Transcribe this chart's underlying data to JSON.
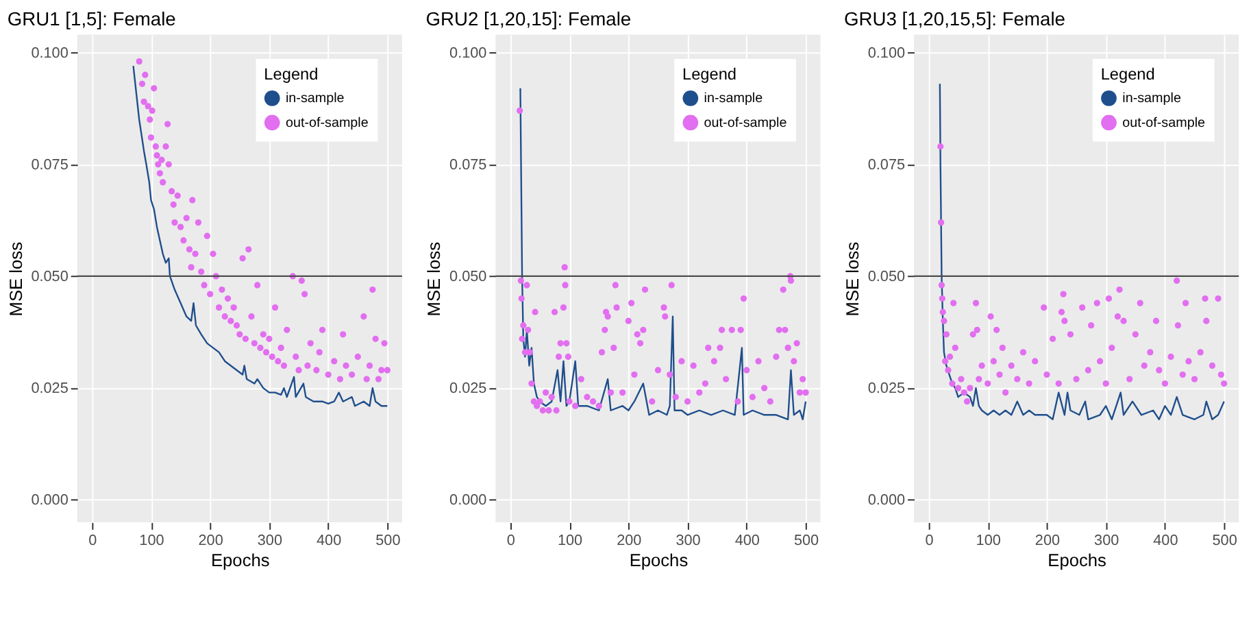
{
  "chart_data": [
    {
      "type": "line",
      "title": "GRU1 [1,5]: Female",
      "xlabel": "Epochs",
      "ylabel": "MSE loss",
      "legend_title": "Legend",
      "legend": "top right",
      "grid": true,
      "xlim": [
        -25,
        525
      ],
      "xticks": [
        0,
        100,
        200,
        300,
        400,
        500
      ],
      "ylim": [
        -0.005,
        0.104
      ],
      "yticks": [
        {
          "value": 0,
          "label": "0.000"
        },
        {
          "value": 0.025,
          "label": "0.025"
        },
        {
          "value": 0.05,
          "label": "0.050"
        },
        {
          "value": 0.075,
          "label": "0.075"
        },
        {
          "value": 0.1,
          "label": "0.100"
        }
      ],
      "ref_lines": [
        {
          "axis": "y",
          "value": 0.05,
          "label": null,
          "color": "#4d4d4d"
        }
      ],
      "series": [
        {
          "name": "in-sample",
          "color": "#1f4e8c",
          "x": [
            70,
            80,
            88,
            92,
            97,
            100,
            105,
            110,
            115,
            120,
            125,
            130,
            132,
            140,
            150,
            160,
            168,
            172,
            176,
            185,
            195,
            205,
            215,
            225,
            235,
            245,
            255,
            258,
            262,
            275,
            280,
            290,
            300,
            310,
            320,
            325,
            330,
            342,
            345,
            358,
            362,
            375,
            390,
            400,
            410,
            418,
            425,
            440,
            445,
            460,
            470,
            475,
            480,
            490,
            500
          ],
          "values": [
            0.097,
            0.085,
            0.078,
            0.075,
            0.071,
            0.067,
            0.065,
            0.061,
            0.058,
            0.055,
            0.053,
            0.054,
            0.05,
            0.047,
            0.044,
            0.041,
            0.04,
            0.044,
            0.039,
            0.037,
            0.035,
            0.034,
            0.033,
            0.031,
            0.03,
            0.029,
            0.028,
            0.03,
            0.027,
            0.026,
            0.027,
            0.025,
            0.024,
            0.024,
            0.0235,
            0.025,
            0.023,
            0.0275,
            0.023,
            0.026,
            0.023,
            0.022,
            0.022,
            0.0215,
            0.022,
            0.024,
            0.022,
            0.023,
            0.021,
            0.022,
            0.021,
            0.025,
            0.022,
            0.021,
            0.021
          ]
        },
        {
          "name": "out-of-sample",
          "type": "scatter",
          "marker": "circle",
          "color": "#e26ef0",
          "x": [
            80,
            85,
            88,
            90,
            95,
            98,
            100,
            102,
            105,
            108,
            110,
            112,
            115,
            118,
            120,
            125,
            128,
            130,
            135,
            138,
            140,
            145,
            150,
            155,
            160,
            165,
            168,
            170,
            175,
            180,
            185,
            190,
            195,
            200,
            205,
            210,
            215,
            220,
            225,
            230,
            235,
            240,
            245,
            250,
            255,
            260,
            265,
            270,
            275,
            280,
            285,
            290,
            295,
            300,
            305,
            310,
            315,
            320,
            325,
            330,
            340,
            345,
            350,
            355,
            360,
            365,
            370,
            380,
            385,
            390,
            400,
            410,
            420,
            425,
            430,
            440,
            450,
            460,
            465,
            470,
            475,
            480,
            485,
            490,
            495,
            500
          ],
          "values": [
            0.098,
            0.093,
            0.089,
            0.095,
            0.088,
            0.085,
            0.081,
            0.087,
            0.092,
            0.079,
            0.077,
            0.075,
            0.073,
            0.076,
            0.071,
            0.079,
            0.084,
            0.075,
            0.069,
            0.066,
            0.062,
            0.068,
            0.061,
            0.058,
            0.063,
            0.056,
            0.052,
            0.067,
            0.055,
            0.062,
            0.051,
            0.048,
            0.059,
            0.046,
            0.055,
            0.05,
            0.043,
            0.047,
            0.041,
            0.045,
            0.04,
            0.043,
            0.039,
            0.037,
            0.054,
            0.036,
            0.056,
            0.041,
            0.035,
            0.048,
            0.034,
            0.037,
            0.033,
            0.036,
            0.032,
            0.043,
            0.031,
            0.034,
            0.03,
            0.038,
            0.05,
            0.032,
            0.029,
            0.049,
            0.046,
            0.03,
            0.035,
            0.029,
            0.033,
            0.038,
            0.028,
            0.031,
            0.027,
            0.037,
            0.03,
            0.028,
            0.032,
            0.041,
            0.027,
            0.03,
            0.047,
            0.036,
            0.027,
            0.029,
            0.035,
            0.029
          ]
        }
      ]
    },
    {
      "type": "line",
      "title": "GRU2 [1,20,15]: Female",
      "xlabel": "Epochs",
      "ylabel": "MSE loss",
      "legend_title": "Legend",
      "legend": "top right",
      "grid": true,
      "xlim": [
        -25,
        525
      ],
      "xticks": [
        0,
        100,
        200,
        300,
        400,
        500
      ],
      "ylim": [
        -0.005,
        0.104
      ],
      "yticks": [
        {
          "value": 0,
          "label": "0.000"
        },
        {
          "value": 0.025,
          "label": "0.025"
        },
        {
          "value": 0.05,
          "label": "0.050"
        },
        {
          "value": 0.075,
          "label": "0.075"
        },
        {
          "value": 0.1,
          "label": "0.100"
        }
      ],
      "ref_lines": [
        {
          "axis": "y",
          "value": 0.05,
          "label": null,
          "color": "#4d4d4d"
        }
      ],
      "series": [
        {
          "name": "in-sample",
          "color": "#1f4e8c",
          "x": [
            17,
            20,
            22,
            25,
            28,
            32,
            36,
            40,
            45,
            50,
            60,
            70,
            80,
            85,
            90,
            95,
            100,
            110,
            115,
            130,
            150,
            165,
            170,
            190,
            200,
            210,
            225,
            235,
            250,
            265,
            270,
            275,
            278,
            290,
            300,
            320,
            340,
            360,
            380,
            392,
            395,
            410,
            430,
            450,
            470,
            475,
            480,
            490,
            495,
            500
          ],
          "values": [
            0.092,
            0.05,
            0.036,
            0.032,
            0.038,
            0.03,
            0.034,
            0.026,
            0.023,
            0.022,
            0.021,
            0.022,
            0.029,
            0.022,
            0.031,
            0.021,
            0.022,
            0.031,
            0.021,
            0.021,
            0.02,
            0.027,
            0.02,
            0.021,
            0.02,
            0.022,
            0.026,
            0.019,
            0.02,
            0.019,
            0.021,
            0.041,
            0.02,
            0.02,
            0.019,
            0.02,
            0.019,
            0.02,
            0.019,
            0.034,
            0.019,
            0.02,
            0.019,
            0.019,
            0.018,
            0.029,
            0.019,
            0.02,
            0.018,
            0.022
          ]
        },
        {
          "name": "out-of-sample",
          "type": "scatter",
          "marker": "circle",
          "color": "#e26ef0",
          "x": [
            16,
            18,
            19,
            20,
            22,
            25,
            28,
            30,
            33,
            36,
            40,
            42,
            45,
            50,
            55,
            60,
            65,
            70,
            75,
            78,
            82,
            85,
            90,
            92,
            93,
            95,
            98,
            100,
            110,
            120,
            130,
            140,
            150,
            155,
            160,
            162,
            165,
            170,
            175,
            178,
            180,
            190,
            200,
            205,
            210,
            215,
            220,
            225,
            228,
            240,
            250,
            260,
            262,
            270,
            273,
            280,
            290,
            300,
            310,
            320,
            330,
            335,
            345,
            355,
            358,
            365,
            375,
            385,
            390,
            395,
            400,
            410,
            420,
            430,
            440,
            450,
            455,
            462,
            465,
            470,
            474,
            475,
            480,
            485,
            490,
            495,
            500
          ],
          "values": [
            0.087,
            0.049,
            0.045,
            0.036,
            0.039,
            0.033,
            0.048,
            0.038,
            0.033,
            0.026,
            0.022,
            0.042,
            0.021,
            0.022,
            0.02,
            0.024,
            0.02,
            0.023,
            0.042,
            0.02,
            0.032,
            0.035,
            0.043,
            0.052,
            0.048,
            0.035,
            0.032,
            0.022,
            0.021,
            0.027,
            0.023,
            0.022,
            0.021,
            0.033,
            0.038,
            0.042,
            0.041,
            0.024,
            0.034,
            0.048,
            0.043,
            0.024,
            0.04,
            0.044,
            0.028,
            0.037,
            0.035,
            0.038,
            0.047,
            0.022,
            0.029,
            0.043,
            0.041,
            0.028,
            0.048,
            0.023,
            0.031,
            0.022,
            0.03,
            0.024,
            0.026,
            0.034,
            0.031,
            0.034,
            0.038,
            0.027,
            0.038,
            0.022,
            0.038,
            0.045,
            0.029,
            0.023,
            0.031,
            0.025,
            0.022,
            0.032,
            0.038,
            0.047,
            0.038,
            0.034,
            0.05,
            0.049,
            0.031,
            0.035,
            0.024,
            0.027,
            0.024
          ]
        }
      ]
    },
    {
      "type": "line",
      "title": "GRU3 [1,20,15,5]: Female",
      "xlabel": "Epochs",
      "ylabel": "MSE loss",
      "legend_title": "Legend",
      "legend": "top right",
      "grid": true,
      "xlim": [
        -25,
        525
      ],
      "xticks": [
        0,
        100,
        200,
        300,
        400,
        500
      ],
      "ylim": [
        -0.005,
        0.104
      ],
      "yticks": [
        {
          "value": 0,
          "label": "0.000"
        },
        {
          "value": 0.025,
          "label": "0.025"
        },
        {
          "value": 0.05,
          "label": "0.050"
        },
        {
          "value": 0.075,
          "label": "0.075"
        },
        {
          "value": 0.1,
          "label": "0.100"
        }
      ],
      "ref_lines": [
        {
          "axis": "y",
          "value": 0.05,
          "label": null,
          "color": "#4d4d4d"
        }
      ],
      "series": [
        {
          "name": "in-sample",
          "color": "#1f4e8c",
          "x": [
            19,
            20,
            22,
            24,
            26,
            30,
            35,
            40,
            45,
            50,
            60,
            70,
            75,
            80,
            85,
            90,
            100,
            110,
            120,
            130,
            140,
            150,
            160,
            170,
            180,
            200,
            210,
            220,
            230,
            235,
            240,
            255,
            265,
            270,
            290,
            300,
            310,
            325,
            330,
            345,
            360,
            380,
            390,
            400,
            410,
            420,
            430,
            450,
            465,
            470,
            480,
            490,
            500
          ],
          "values": [
            0.093,
            0.075,
            0.05,
            0.04,
            0.033,
            0.03,
            0.028,
            0.026,
            0.025,
            0.023,
            0.024,
            0.023,
            0.021,
            0.025,
            0.021,
            0.02,
            0.019,
            0.02,
            0.019,
            0.02,
            0.019,
            0.022,
            0.019,
            0.02,
            0.019,
            0.019,
            0.018,
            0.024,
            0.019,
            0.024,
            0.02,
            0.019,
            0.022,
            0.018,
            0.019,
            0.021,
            0.018,
            0.024,
            0.019,
            0.022,
            0.019,
            0.02,
            0.018,
            0.021,
            0.019,
            0.023,
            0.019,
            0.018,
            0.019,
            0.022,
            0.018,
            0.019,
            0.022
          ]
        },
        {
          "name": "out-of-sample",
          "type": "scatter",
          "marker": "circle",
          "color": "#e26ef0",
          "x": [
            20,
            21,
            22,
            23,
            24,
            26,
            28,
            30,
            33,
            36,
            40,
            42,
            45,
            50,
            55,
            60,
            65,
            70,
            75,
            80,
            82,
            85,
            90,
            100,
            105,
            110,
            115,
            120,
            125,
            130,
            140,
            150,
            160,
            170,
            180,
            195,
            200,
            210,
            220,
            225,
            228,
            230,
            240,
            250,
            260,
            270,
            275,
            285,
            290,
            300,
            305,
            310,
            320,
            323,
            330,
            340,
            350,
            358,
            365,
            375,
            385,
            390,
            400,
            410,
            420,
            422,
            430,
            435,
            440,
            450,
            460,
            468,
            470,
            480,
            490,
            495,
            500
          ],
          "values": [
            0.079,
            0.062,
            0.048,
            0.045,
            0.042,
            0.04,
            0.031,
            0.037,
            0.029,
            0.032,
            0.026,
            0.044,
            0.034,
            0.025,
            0.027,
            0.024,
            0.022,
            0.025,
            0.037,
            0.044,
            0.038,
            0.027,
            0.03,
            0.026,
            0.041,
            0.031,
            0.038,
            0.028,
            0.034,
            0.024,
            0.03,
            0.027,
            0.033,
            0.026,
            0.031,
            0.043,
            0.028,
            0.036,
            0.026,
            0.042,
            0.046,
            0.04,
            0.037,
            0.027,
            0.043,
            0.029,
            0.039,
            0.044,
            0.031,
            0.026,
            0.045,
            0.034,
            0.041,
            0.047,
            0.04,
            0.027,
            0.037,
            0.044,
            0.03,
            0.033,
            0.04,
            0.029,
            0.026,
            0.032,
            0.049,
            0.039,
            0.028,
            0.044,
            0.031,
            0.027,
            0.033,
            0.045,
            0.04,
            0.03,
            0.045,
            0.028,
            0.026
          ]
        }
      ]
    }
  ]
}
